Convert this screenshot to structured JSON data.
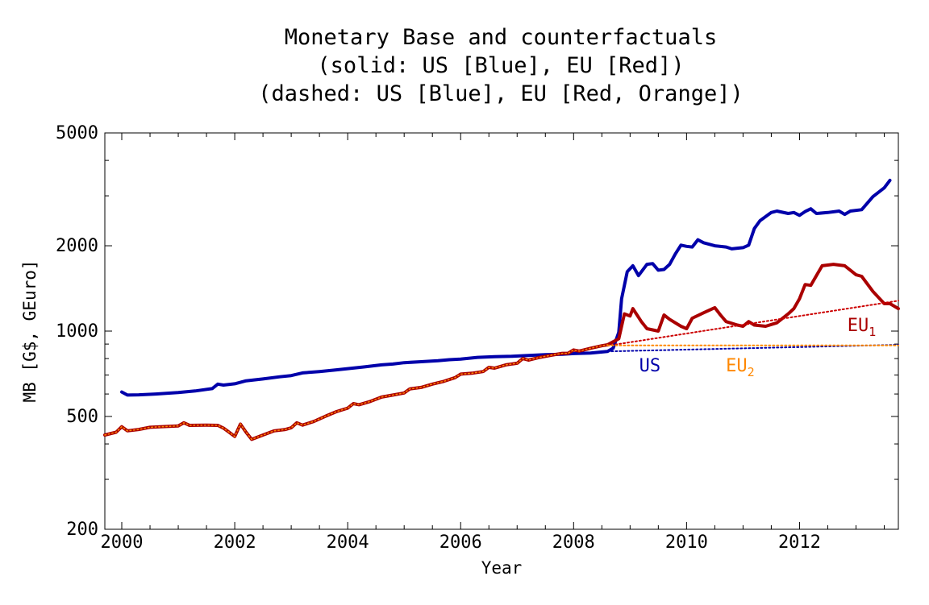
{
  "chart_data": {
    "type": "line",
    "title_lines": [
      "Monetary Base and counterfactuals",
      "(solid: US [Blue], EU [Red])",
      "(dashed: US [Blue], EU [Red, Orange])"
    ],
    "xlabel": "Year",
    "ylabel": "MB [G$, GEuro]",
    "xlim": [
      1999.7,
      2013.75
    ],
    "ylim": [
      200,
      5000
    ],
    "yscale": "log",
    "xticks": [
      2000,
      2002,
      2004,
      2006,
      2008,
      2010,
      2012
    ],
    "xtick_labels": [
      "2000",
      "2002",
      "2004",
      "2006",
      "2008",
      "2010",
      "2012"
    ],
    "yticks": [
      200,
      500,
      1000,
      2000,
      5000
    ],
    "ytick_labels": [
      "200",
      "500",
      "1000",
      "2000",
      "5000"
    ],
    "grid": false,
    "series": [
      {
        "name": "US",
        "style": "solid",
        "color": "#0000aa",
        "points": [
          [
            2000.0,
            610
          ],
          [
            2000.1,
            595
          ],
          [
            2000.3,
            596
          ],
          [
            2000.6,
            600
          ],
          [
            2001.0,
            607
          ],
          [
            2001.3,
            615
          ],
          [
            2001.6,
            627
          ],
          [
            2001.7,
            650
          ],
          [
            2001.8,
            645
          ],
          [
            2002.0,
            652
          ],
          [
            2002.2,
            668
          ],
          [
            2002.5,
            678
          ],
          [
            2002.8,
            690
          ],
          [
            2003.0,
            697
          ],
          [
            2003.2,
            712
          ],
          [
            2003.5,
            720
          ],
          [
            2003.8,
            730
          ],
          [
            2004.0,
            737
          ],
          [
            2004.3,
            748
          ],
          [
            2004.6,
            760
          ],
          [
            2004.8,
            765
          ],
          [
            2005.0,
            774
          ],
          [
            2005.3,
            780
          ],
          [
            2005.6,
            786
          ],
          [
            2005.8,
            793
          ],
          [
            2006.0,
            797
          ],
          [
            2006.3,
            808
          ],
          [
            2006.6,
            812
          ],
          [
            2006.9,
            815
          ],
          [
            2007.2,
            820
          ],
          [
            2007.5,
            826
          ],
          [
            2007.8,
            829
          ],
          [
            2008.0,
            833
          ],
          [
            2008.3,
            837
          ],
          [
            2008.6,
            848
          ],
          [
            2008.7,
            870
          ],
          [
            2008.8,
            990
          ],
          [
            2008.85,
            1300
          ],
          [
            2008.95,
            1620
          ],
          [
            2009.05,
            1700
          ],
          [
            2009.15,
            1570
          ],
          [
            2009.3,
            1720
          ],
          [
            2009.4,
            1730
          ],
          [
            2009.5,
            1640
          ],
          [
            2009.6,
            1650
          ],
          [
            2009.7,
            1720
          ],
          [
            2009.8,
            1870
          ],
          [
            2009.9,
            2010
          ],
          [
            2010.0,
            1990
          ],
          [
            2010.1,
            1980
          ],
          [
            2010.2,
            2100
          ],
          [
            2010.3,
            2050
          ],
          [
            2010.5,
            2000
          ],
          [
            2010.7,
            1980
          ],
          [
            2010.8,
            1950
          ],
          [
            2010.9,
            1960
          ],
          [
            2011.0,
            1970
          ],
          [
            2011.1,
            2010
          ],
          [
            2011.2,
            2300
          ],
          [
            2011.3,
            2450
          ],
          [
            2011.5,
            2620
          ],
          [
            2011.6,
            2650
          ],
          [
            2011.8,
            2600
          ],
          [
            2011.9,
            2620
          ],
          [
            2012.0,
            2560
          ],
          [
            2012.1,
            2640
          ],
          [
            2012.2,
            2700
          ],
          [
            2012.3,
            2600
          ],
          [
            2012.5,
            2620
          ],
          [
            2012.7,
            2650
          ],
          [
            2012.8,
            2580
          ],
          [
            2012.9,
            2650
          ],
          [
            2013.1,
            2680
          ],
          [
            2013.3,
            2980
          ],
          [
            2013.5,
            3200
          ],
          [
            2013.6,
            3400
          ]
        ]
      },
      {
        "name": "EU",
        "style": "solid",
        "color": "#aa0000",
        "points": [
          [
            1999.7,
            430
          ],
          [
            1999.9,
            440
          ],
          [
            2000.0,
            460
          ],
          [
            2000.1,
            445
          ],
          [
            2000.3,
            450
          ],
          [
            2000.5,
            458
          ],
          [
            2000.8,
            461
          ],
          [
            2001.0,
            463
          ],
          [
            2001.1,
            475
          ],
          [
            2001.2,
            465
          ],
          [
            2001.5,
            466
          ],
          [
            2001.7,
            465
          ],
          [
            2001.8,
            455
          ],
          [
            2001.9,
            440
          ],
          [
            2002.0,
            425
          ],
          [
            2002.1,
            470
          ],
          [
            2002.2,
            440
          ],
          [
            2002.3,
            415
          ],
          [
            2002.5,
            430
          ],
          [
            2002.7,
            445
          ],
          [
            2002.9,
            450
          ],
          [
            2003.0,
            456
          ],
          [
            2003.1,
            475
          ],
          [
            2003.2,
            466
          ],
          [
            2003.4,
            480
          ],
          [
            2003.6,
            500
          ],
          [
            2003.8,
            520
          ],
          [
            2004.0,
            535
          ],
          [
            2004.1,
            555
          ],
          [
            2004.2,
            550
          ],
          [
            2004.4,
            565
          ],
          [
            2004.6,
            585
          ],
          [
            2004.8,
            595
          ],
          [
            2005.0,
            605
          ],
          [
            2005.1,
            625
          ],
          [
            2005.3,
            633
          ],
          [
            2005.5,
            650
          ],
          [
            2005.7,
            665
          ],
          [
            2005.9,
            685
          ],
          [
            2006.0,
            705
          ],
          [
            2006.2,
            710
          ],
          [
            2006.4,
            720
          ],
          [
            2006.5,
            745
          ],
          [
            2006.6,
            740
          ],
          [
            2006.8,
            760
          ],
          [
            2007.0,
            770
          ],
          [
            2007.1,
            800
          ],
          [
            2007.2,
            790
          ],
          [
            2007.4,
            808
          ],
          [
            2007.6,
            822
          ],
          [
            2007.8,
            835
          ],
          [
            2007.9,
            835
          ],
          [
            2008.0,
            858
          ],
          [
            2008.1,
            850
          ],
          [
            2008.3,
            870
          ],
          [
            2008.5,
            888
          ],
          [
            2008.6,
            895
          ],
          [
            2008.8,
            940
          ],
          [
            2008.9,
            1150
          ],
          [
            2009.0,
            1130
          ],
          [
            2009.05,
            1200
          ],
          [
            2009.2,
            1080
          ],
          [
            2009.3,
            1020
          ],
          [
            2009.4,
            1010
          ],
          [
            2009.5,
            1000
          ],
          [
            2009.6,
            1140
          ],
          [
            2009.7,
            1100
          ],
          [
            2009.9,
            1040
          ],
          [
            2010.0,
            1020
          ],
          [
            2010.1,
            1110
          ],
          [
            2010.3,
            1160
          ],
          [
            2010.5,
            1210
          ],
          [
            2010.6,
            1140
          ],
          [
            2010.7,
            1080
          ],
          [
            2010.9,
            1050
          ],
          [
            2011.0,
            1040
          ],
          [
            2011.1,
            1080
          ],
          [
            2011.2,
            1050
          ],
          [
            2011.4,
            1040
          ],
          [
            2011.6,
            1070
          ],
          [
            2011.8,
            1150
          ],
          [
            2011.9,
            1200
          ],
          [
            2012.0,
            1300
          ],
          [
            2012.1,
            1460
          ],
          [
            2012.2,
            1450
          ],
          [
            2012.3,
            1570
          ],
          [
            2012.4,
            1700
          ],
          [
            2012.6,
            1720
          ],
          [
            2012.8,
            1700
          ],
          [
            2012.9,
            1640
          ],
          [
            2013.0,
            1580
          ],
          [
            2013.1,
            1560
          ],
          [
            2013.3,
            1380
          ],
          [
            2013.5,
            1250
          ],
          [
            2013.6,
            1250
          ],
          [
            2013.75,
            1200
          ]
        ]
      },
      {
        "name": "US",
        "style": "dashed",
        "color": "#0000aa",
        "points": [
          [
            2008.6,
            848
          ],
          [
            2013.75,
            895
          ]
        ]
      },
      {
        "name": "EU₁",
        "style": "dashed",
        "color": "#cc0000",
        "points": [
          [
            2008.6,
            888
          ],
          [
            2013.75,
            1280
          ]
        ]
      },
      {
        "name": "EU₂",
        "style": "dashed",
        "color": "#ff8800",
        "points": [
          [
            2008.6,
            890
          ],
          [
            2013.75,
            890
          ]
        ]
      }
    ],
    "annotations": [
      {
        "text": "US",
        "x": 2009.35,
        "y": 720,
        "color": "#0000aa"
      },
      {
        "text": "EU",
        "sub": "2",
        "x": 2010.95,
        "y": 720,
        "color": "#ff8800"
      },
      {
        "text": "EU",
        "sub": "1",
        "x": 2013.1,
        "y": 1000,
        "color": "#aa0000"
      }
    ]
  }
}
